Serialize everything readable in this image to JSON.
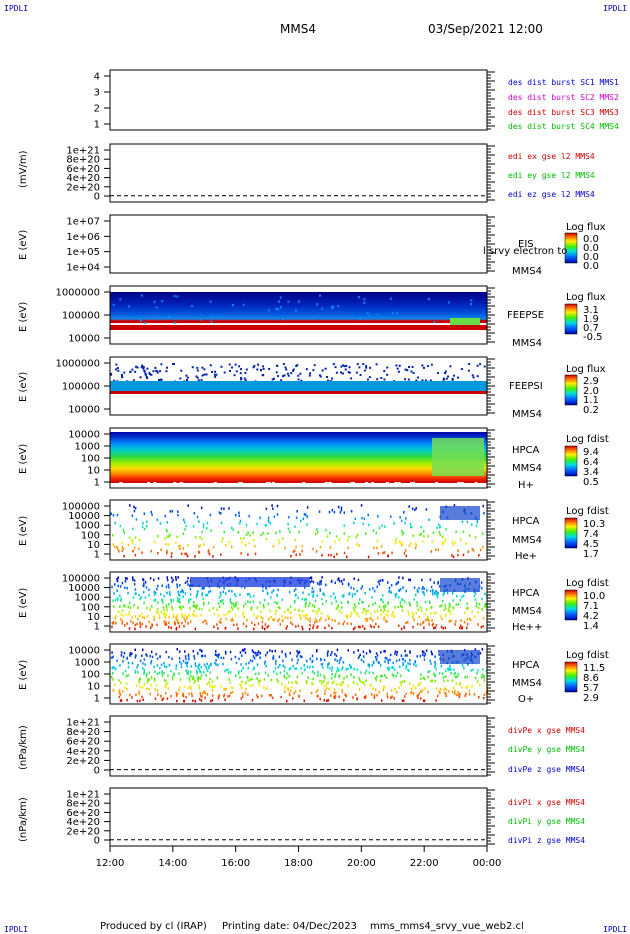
{
  "header": {
    "corner_left": "IPDLI",
    "corner_right": "IPDLI",
    "spacecraft": "MMS4",
    "datetime": "03/Sep/2021 12:00"
  },
  "footer": {
    "producer": "Produced by cl (IRAP)",
    "printing": "Printing date: 04/Dec/2023",
    "script": "mms_mms4_srvy_vue_web2.cl",
    "corner_left": "IPDLI",
    "corner_right": "IPDLI"
  },
  "x_axis": {
    "ticks": [
      "12:00",
      "14:00",
      "16:00",
      "18:00",
      "20:00",
      "22:00",
      "00:00"
    ]
  },
  "colors": {
    "mms1": "#0000cc",
    "mms2": "#cc00cc",
    "mms3": "#cc0000",
    "mms4": "#00bb00",
    "x": "#cc0000",
    "y": "#00bb00",
    "z": "#0000cc"
  },
  "chart_data": [
    {
      "type": "line",
      "panel": "burst",
      "ylabel": "",
      "yticks": [
        "4",
        "3",
        "2",
        "1"
      ],
      "legend": [
        "des dist burst SC1 MMS1",
        "des dist burst SC2 MMS2",
        "des dist burst SC3 MMS3",
        "des dist burst SC4 MMS4"
      ],
      "series": []
    },
    {
      "type": "line",
      "panel": "edi",
      "ylabel": "(mV/m)",
      "yticks": [
        "1e+21",
        "8e+20",
        "6e+20",
        "4e+20",
        "2e+20",
        "0"
      ],
      "legend": [
        "edi ex gse l2 MMS4",
        "edi ey gse l2 MMS4",
        "edi ez gse l2 MMS4"
      ],
      "series": []
    },
    {
      "type": "heatmap",
      "panel": "eis",
      "ylabel": "E (eV)",
      "yticks": [
        "1e+07",
        "1e+06",
        "1e+05",
        "1e+04"
      ],
      "side_labels": [
        "EIS",
        "MMS4"
      ],
      "overlay_text": "l srvy electron to",
      "colorbar": {
        "title": "Log flux",
        "values": [
          "0.0",
          "0.0",
          "0.0",
          "0.0"
        ]
      }
    },
    {
      "type": "heatmap",
      "panel": "feeps-e",
      "ylabel": "E (eV)",
      "yticks": [
        "1000000",
        "100000",
        "10000"
      ],
      "side_labels": [
        "FEEPSE",
        "MMS4"
      ],
      "colorbar": {
        "title": "Log flux",
        "values": [
          "3.1",
          "1.9",
          "0.7",
          "-0.5"
        ]
      }
    },
    {
      "type": "heatmap",
      "panel": "feeps-i",
      "ylabel": "E (eV)",
      "yticks": [
        "1000000",
        "100000",
        "10000"
      ],
      "side_labels": [
        "FEEPSI",
        "MMS4"
      ],
      "colorbar": {
        "title": "Log flux",
        "values": [
          "2.9",
          "2.0",
          "1.1",
          "0.2"
        ]
      }
    },
    {
      "type": "heatmap",
      "panel": "hpca-h",
      "ylabel": "E (eV)",
      "yticks": [
        "10000",
        "1000",
        "100",
        "10",
        "1"
      ],
      "side_labels": [
        "HPCA",
        "MMS4",
        "H+"
      ],
      "colorbar": {
        "title": "Log fdist",
        "values": [
          "9.4",
          "6.4",
          "3.4",
          "0.5"
        ]
      }
    },
    {
      "type": "heatmap",
      "panel": "hpca-he",
      "ylabel": "E (eV)",
      "yticks": [
        "100000",
        "10000",
        "1000",
        "100",
        "10",
        "1"
      ],
      "side_labels": [
        "HPCA",
        "MMS4",
        "He+"
      ],
      "colorbar": {
        "title": "Log fdist",
        "values": [
          "10.3",
          "7.4",
          "4.5",
          "1.7"
        ]
      }
    },
    {
      "type": "heatmap",
      "panel": "hpca-hepp",
      "ylabel": "E (eV)",
      "yticks": [
        "100000",
        "10000",
        "1000",
        "100",
        "10",
        "1"
      ],
      "side_labels": [
        "HPCA",
        "MMS4",
        "He++"
      ],
      "colorbar": {
        "title": "Log fdist",
        "values": [
          "10.0",
          "7.1",
          "4.2",
          "1.4"
        ]
      }
    },
    {
      "type": "heatmap",
      "panel": "hpca-o",
      "ylabel": "E (eV)",
      "yticks": [
        "10000",
        "1000",
        "100",
        "10",
        "1"
      ],
      "side_labels": [
        "HPCA",
        "MMS4",
        "O+"
      ],
      "colorbar": {
        "title": "Log fdist",
        "values": [
          "11.5",
          "8.6",
          "5.7",
          "2.9"
        ]
      }
    },
    {
      "type": "line",
      "panel": "divpe",
      "ylabel": "(nPa/km)",
      "yticks": [
        "1e+21",
        "8e+20",
        "6e+20",
        "4e+20",
        "2e+20",
        "0"
      ],
      "legend": [
        "divPe x gse MMS4",
        "divPe y gse MMS4",
        "divPe z gse MMS4"
      ],
      "series": []
    },
    {
      "type": "line",
      "panel": "divpi",
      "ylabel": "(nPa/km)",
      "yticks": [
        "1e+21",
        "8e+20",
        "6e+20",
        "4e+20",
        "2e+20",
        "0"
      ],
      "legend": [
        "divPi x gse MMS4",
        "divPi y gse MMS4",
        "divPi z gse MMS4"
      ],
      "series": []
    }
  ]
}
